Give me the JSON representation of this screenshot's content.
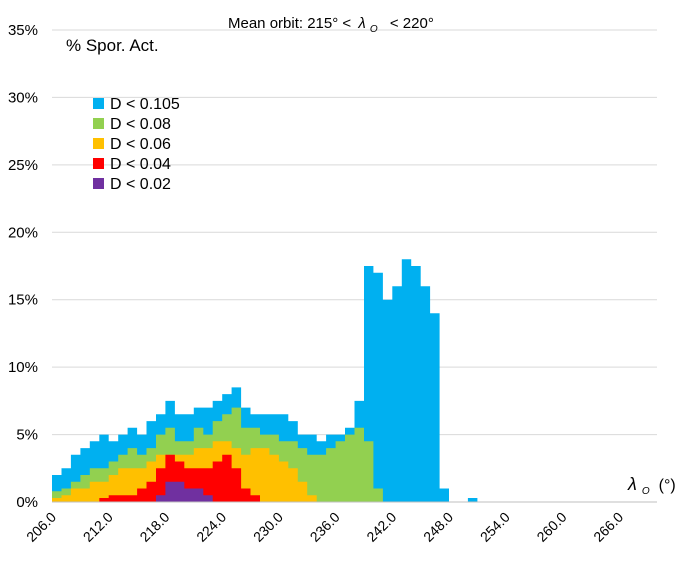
{
  "chart_data": {
    "type": "area",
    "title_prefix": "Mean orbit: 215° <",
    "title_symbol": "λ",
    "title_subscript": "O",
    "title_suffix": "< 220°",
    "ylabel": "% Spor. Act.",
    "xlabel_symbol": "λ",
    "xlabel_subscript": "O",
    "xlabel_unit": "(°)",
    "xlim": [
      206,
      270
    ],
    "ylim": [
      0,
      35
    ],
    "grid": true,
    "legend_position": "top-left",
    "x_ticks": [
      "206.0",
      "212.0",
      "218.0",
      "224.0",
      "230.0",
      "236.0",
      "242.0",
      "248.0",
      "254.0",
      "260.0",
      "266.0"
    ],
    "y_ticks": [
      "0%",
      "5%",
      "10%",
      "15%",
      "20%",
      "25%",
      "30%",
      "35%"
    ],
    "x": [
      206,
      207,
      208,
      209,
      210,
      211,
      212,
      213,
      214,
      215,
      216,
      217,
      218,
      219,
      220,
      221,
      222,
      223,
      224,
      225,
      226,
      227,
      228,
      229,
      230,
      231,
      232,
      233,
      234,
      235,
      236,
      237,
      238,
      239,
      240,
      241,
      242,
      243,
      244,
      245,
      246,
      247,
      248,
      249,
      250,
      251,
      252,
      253,
      254
    ],
    "series": [
      {
        "name": "D < 0.105",
        "color": "#00b0f0",
        "values": [
          2.0,
          2.5,
          3.5,
          4.0,
          4.5,
          5.0,
          4.5,
          5.0,
          5.5,
          5.0,
          6.0,
          6.5,
          7.5,
          6.5,
          6.5,
          7.0,
          7.0,
          7.5,
          8.0,
          8.5,
          7.0,
          6.5,
          6.5,
          6.5,
          6.5,
          6.0,
          5.0,
          5.0,
          4.5,
          5.0,
          5.0,
          5.5,
          7.5,
          17.5,
          17.0,
          15.0,
          16.0,
          18.0,
          17.5,
          16.0,
          14.0,
          1.0,
          0.0,
          0.0,
          0.3,
          0.0,
          0.0,
          0.0,
          0.0
        ]
      },
      {
        "name": "D < 0.08",
        "color": "#92d050",
        "values": [
          0.8,
          1.0,
          1.5,
          2.0,
          2.5,
          2.5,
          3.0,
          3.5,
          4.0,
          3.5,
          4.0,
          5.0,
          5.5,
          4.5,
          4.5,
          5.5,
          5.0,
          6.0,
          6.5,
          7.0,
          5.5,
          5.5,
          5.0,
          5.0,
          4.5,
          4.5,
          4.0,
          3.5,
          3.5,
          4.0,
          4.5,
          5.0,
          5.5,
          4.5,
          1.0,
          0.0,
          0.0,
          0.0,
          0.0,
          0.0,
          0.0,
          0.0,
          0.0,
          0.0,
          0.0,
          0.0,
          0.0,
          0.0,
          0.0
        ]
      },
      {
        "name": "D < 0.06",
        "color": "#ffc000",
        "values": [
          0.3,
          0.5,
          1.0,
          1.0,
          1.5,
          1.5,
          2.0,
          2.5,
          2.5,
          2.5,
          3.0,
          3.5,
          3.5,
          3.5,
          3.5,
          4.0,
          4.0,
          4.5,
          4.5,
          4.0,
          3.5,
          4.0,
          4.0,
          3.5,
          3.0,
          2.5,
          1.5,
          0.5,
          0.0,
          0.0,
          0.0,
          0.0,
          0.0,
          0.0,
          0.0,
          0.0,
          0.0,
          0.0,
          0.0,
          0.0,
          0.0,
          0.0,
          0.0,
          0.0,
          0.0,
          0.0,
          0.0,
          0.0,
          0.0
        ]
      },
      {
        "name": "D < 0.04",
        "color": "#ff0000",
        "values": [
          0.0,
          0.0,
          0.0,
          0.0,
          0.0,
          0.3,
          0.5,
          0.5,
          0.5,
          1.0,
          1.5,
          2.5,
          3.5,
          3.0,
          2.5,
          2.5,
          2.5,
          3.0,
          3.5,
          2.5,
          1.0,
          0.5,
          0.0,
          0.0,
          0.0,
          0.0,
          0.0,
          0.0,
          0.0,
          0.0,
          0.0,
          0.0,
          0.0,
          0.0,
          0.0,
          0.0,
          0.0,
          0.0,
          0.0,
          0.0,
          0.0,
          0.0,
          0.0,
          0.0,
          0.0,
          0.0,
          0.0,
          0.0,
          0.0
        ]
      },
      {
        "name": "D < 0.02",
        "color": "#7030a0",
        "values": [
          0.0,
          0.0,
          0.0,
          0.0,
          0.0,
          0.0,
          0.0,
          0.0,
          0.0,
          0.0,
          0.0,
          0.5,
          1.5,
          1.5,
          1.0,
          1.0,
          0.5,
          0.0,
          0.0,
          0.0,
          0.0,
          0.0,
          0.0,
          0.0,
          0.0,
          0.0,
          0.0,
          0.0,
          0.0,
          0.0,
          0.0,
          0.0,
          0.0,
          0.0,
          0.0,
          0.0,
          0.0,
          0.0,
          0.0,
          0.0,
          0.0,
          0.0,
          0.0,
          0.0,
          0.0,
          0.0,
          0.0,
          0.0,
          0.0
        ]
      }
    ]
  }
}
